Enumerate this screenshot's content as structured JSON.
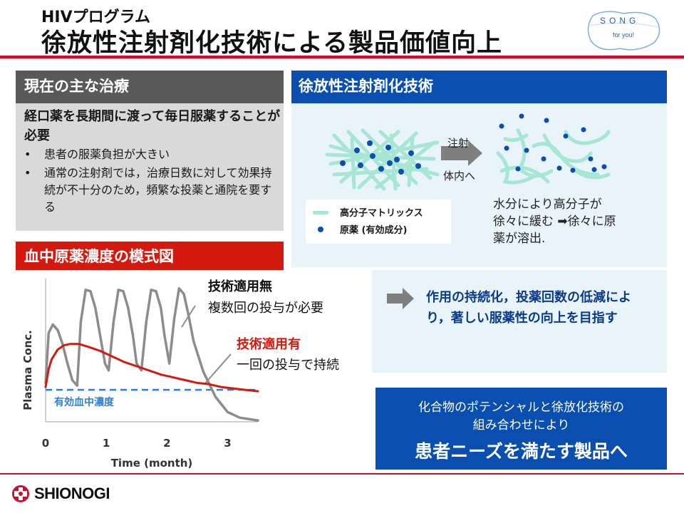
{
  "header": {
    "subtitle": "HIVプログラム",
    "title": "徐放性注射剤化技術による製品価値向上",
    "badge_main": "SONG",
    "badge_tag": "for you!"
  },
  "current_treatment": {
    "heading": "現在の主な治療",
    "lead": "経口薬を長期間に渡って毎日服薬することが必要",
    "bullets": [
      "患者の服薬負担が大きい",
      "通常の注射剤では，治療日数に対して効果持続が不十分のため，頻繁な投薬と通院を要する"
    ]
  },
  "technology": {
    "heading": "徐放性注射剤化技術",
    "arrow_top_label": "注射",
    "arrow_bottom_label": "体内へ",
    "legend_matrix": "高分子マトリックス",
    "legend_drug": "原薬 (有効成分)",
    "mechanism": "水分により高分子が徐々に緩む ➡徐々に原薬が溶出."
  },
  "graph": {
    "heading": "血中原薬濃度の模式図",
    "no_tech_title": "技術適用無",
    "no_tech_desc": "複数回の投与が必要",
    "with_tech_title": "技術適用有",
    "with_tech_desc": "一回の投与で持続",
    "effective_label": "有効血中濃度"
  },
  "chart_data": {
    "type": "line",
    "xlabel": "Time (month)",
    "ylabel": "Plasma Conc.",
    "x_ticks": [
      "0",
      "1",
      "2",
      "3"
    ],
    "xlim": [
      0,
      3.5
    ],
    "ylim": [
      0,
      1
    ],
    "effective_level": 0.23,
    "series": [
      {
        "name": "技術適用無",
        "color": "#8c8c8c",
        "x": [
          0,
          0.05,
          0.12,
          0.2,
          0.28,
          0.36,
          0.44,
          0.52,
          0.58,
          0.66,
          0.74,
          0.82,
          0.9,
          0.98,
          1.04,
          1.12,
          1.2,
          1.28,
          1.36,
          1.44,
          1.5,
          1.58,
          1.66,
          1.74,
          1.82,
          1.9,
          1.96,
          2.04,
          2.12,
          2.2,
          2.28,
          2.36,
          2.44,
          2.6,
          2.8,
          3.0,
          3.2,
          3.5
        ],
        "y": [
          0.28,
          0.64,
          0.7,
          0.66,
          0.56,
          0.42,
          0.3,
          0.26,
          0.72,
          0.95,
          0.94,
          0.82,
          0.62,
          0.42,
          0.37,
          0.72,
          0.95,
          0.94,
          0.82,
          0.62,
          0.42,
          0.37,
          0.72,
          0.95,
          0.94,
          0.82,
          0.62,
          0.42,
          0.74,
          0.96,
          0.92,
          0.76,
          0.58,
          0.36,
          0.18,
          0.07,
          0.03,
          0.01
        ]
      },
      {
        "name": "技術適用有",
        "color": "#d4190f",
        "x": [
          0,
          0.05,
          0.1,
          0.2,
          0.3,
          0.4,
          0.55,
          0.7,
          0.9,
          1.1,
          1.3,
          1.5,
          1.7,
          1.9,
          2.1,
          2.3,
          2.5,
          2.7,
          2.9,
          3.1,
          3.3,
          3.5
        ],
        "y": [
          0.25,
          0.38,
          0.45,
          0.52,
          0.55,
          0.56,
          0.56,
          0.54,
          0.51,
          0.47,
          0.43,
          0.4,
          0.37,
          0.34,
          0.32,
          0.3,
          0.28,
          0.27,
          0.25,
          0.24,
          0.23,
          0.22
        ]
      }
    ]
  },
  "effect": {
    "text": "作用の持続化，投薬回数の低減により，著しい服薬性の向上を目指す"
  },
  "conclusion": {
    "line1": "化合物のポテンシャルと徐放化技術の",
    "line2": "組み合わせにより",
    "line3": "患者ニーズを満たす製品へ"
  },
  "footer": {
    "company": "SHIONOGI"
  },
  "colors": {
    "brand_red": "#c8102e",
    "accent_blue": "#0a4fb0",
    "matrix_green": "#a6e6d3"
  }
}
